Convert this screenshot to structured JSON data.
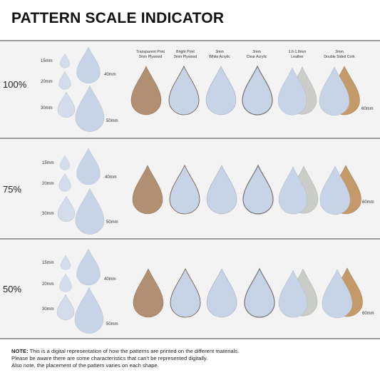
{
  "title": "PATTERN SCALE INDICATOR",
  "materials": [
    {
      "line1": "Transparent Print",
      "line2": "3mm Plywood"
    },
    {
      "line1": "Bright Print",
      "line2": "3mm Plywood"
    },
    {
      "line1": "3mm",
      "line2": "White Acrylic"
    },
    {
      "line1": "3mm",
      "line2": "Clear Acrylic"
    },
    {
      "line1": "1.6-1.8mm",
      "line2": "Leather"
    },
    {
      "line1": "2mm",
      "line2": "Double Sided Cork"
    }
  ],
  "sections": [
    {
      "scale": "100%",
      "sizes": [
        "15mm",
        "20mm",
        "30mm",
        "40mm",
        "50mm"
      ],
      "right_size": "60mm"
    },
    {
      "scale": "75%",
      "sizes": [
        "15mm",
        "20mm",
        "30mm",
        "40mm",
        "50mm"
      ],
      "right_size": "60mm"
    },
    {
      "scale": "50%",
      "sizes": [
        "15mm",
        "20mm",
        "30mm",
        "40mm",
        "50mm"
      ],
      "right_size": "60mm"
    }
  ],
  "note": {
    "label": "NOTE:",
    "line1": " This is a digital representation of how the patterns are printed on the different materials.",
    "line2": "Please be aware there are some characteristics that can't be represented digitally.",
    "line3": "Also note, the placement of the pattern varies on each shape."
  },
  "colors": {
    "plywood": "#b08f73",
    "leather": "#c9ccc7",
    "cork": "#c49a6a",
    "floral_blue": "#9fb5d3",
    "floral_pink": "#e9c9c8",
    "floral_yellow": "#e1c06e",
    "floral_navy": "#3c4f78"
  }
}
